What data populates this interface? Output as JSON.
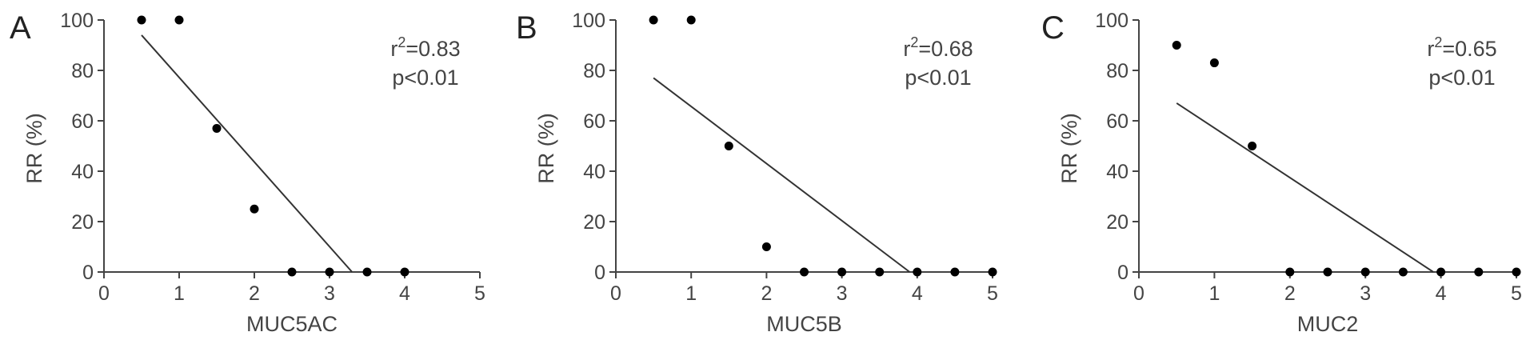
{
  "chart_data": [
    {
      "type": "scatter",
      "panel_label": "A",
      "xlabel": "MUC5AC",
      "ylabel": "RR (%)",
      "xlim": [
        0,
        5
      ],
      "ylim": [
        0,
        100
      ],
      "xticks": [
        "0",
        "1",
        "2",
        "3",
        "4",
        "5"
      ],
      "yticks": [
        "0",
        "20",
        "40",
        "60",
        "80",
        "100"
      ],
      "x": [
        0.5,
        1.0,
        1.5,
        2.0,
        2.5,
        3.0,
        3.5,
        4.0
      ],
      "y": [
        100,
        100,
        57,
        25,
        0,
        0,
        0,
        0
      ],
      "fit_line": {
        "x": [
          0.5,
          3.3
        ],
        "y": [
          94,
          0
        ]
      },
      "r2_prefix": "r",
      "r2_exp": "2",
      "r2_value": "=0.83",
      "p_text": "p<0.01",
      "grid": false
    },
    {
      "type": "scatter",
      "panel_label": "B",
      "xlabel": "MUC5B",
      "ylabel": "RR (%)",
      "xlim": [
        0,
        5
      ],
      "ylim": [
        0,
        100
      ],
      "xticks": [
        "0",
        "1",
        "2",
        "3",
        "4",
        "5"
      ],
      "yticks": [
        "0",
        "20",
        "40",
        "60",
        "80",
        "100"
      ],
      "x": [
        0.5,
        1.0,
        1.5,
        2.0,
        2.5,
        3.0,
        3.5,
        4.0,
        4.5,
        5.0
      ],
      "y": [
        100,
        100,
        50,
        10,
        0,
        0,
        0,
        0,
        0,
        0
      ],
      "fit_line": {
        "x": [
          0.5,
          3.9
        ],
        "y": [
          77,
          0
        ]
      },
      "r2_prefix": "r",
      "r2_exp": "2",
      "r2_value": "=0.68",
      "p_text": "p<0.01",
      "grid": false
    },
    {
      "type": "scatter",
      "panel_label": "C",
      "xlabel": "MUC2",
      "ylabel": "RR (%)",
      "xlim": [
        0,
        5
      ],
      "ylim": [
        0,
        100
      ],
      "xticks": [
        "0",
        "1",
        "2",
        "3",
        "4",
        "5"
      ],
      "yticks": [
        "0",
        "20",
        "40",
        "60",
        "80",
        "100"
      ],
      "x": [
        0.5,
        1.0,
        1.5,
        2.0,
        2.5,
        3.0,
        3.5,
        4.0,
        4.5,
        5.0
      ],
      "y": [
        90,
        83,
        50,
        0,
        0,
        0,
        0,
        0,
        0,
        0
      ],
      "fit_line": {
        "x": [
          0.5,
          3.9
        ],
        "y": [
          67,
          0
        ]
      },
      "r2_prefix": "r",
      "r2_exp": "2",
      "r2_value": "=0.65",
      "p_text": "p<0.01",
      "grid": false
    }
  ]
}
